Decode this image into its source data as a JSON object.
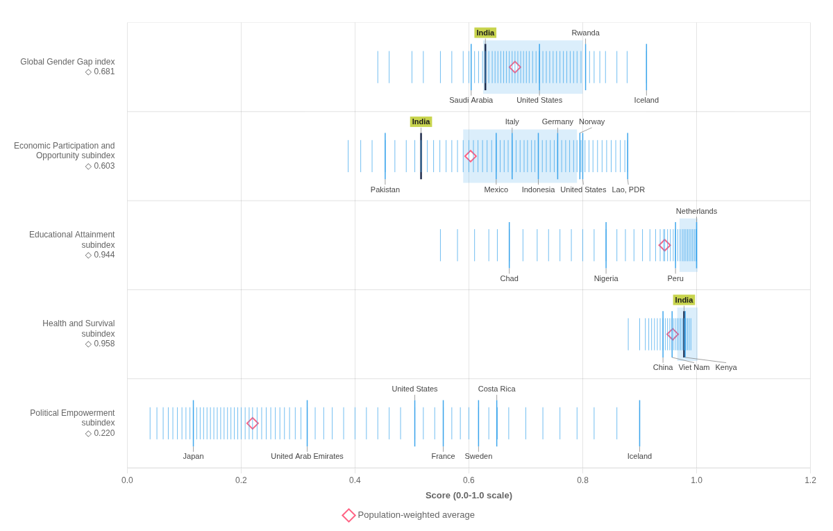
{
  "chart_data": {
    "type": "strip",
    "categories": [
      [
        "Global Gender Gap index"
      ],
      [
        "Economic Participation and",
        "Opportunity subindex"
      ],
      [
        "Educational Attainment",
        "subindex"
      ],
      [
        "Health and Survival",
        "subindex"
      ],
      [
        "Political Empowerment",
        "subindex"
      ]
    ],
    "xlabel": "Score (0.0-1.0 scale)",
    "xlim": [
      0,
      1.2
    ],
    "xticks": [
      {
        "value": 0,
        "label": "0.0"
      },
      0.2,
      0.4,
      0.6,
      0.8,
      {
        "value": 1,
        "label": "1.0"
      },
      1.2
    ],
    "grid": true,
    "legend": "bottom",
    "series": [
      {
        "name": "Population-weighted average",
        "marker": "diamond",
        "values": [
          0.681,
          0.603,
          0.944,
          0.958,
          0.22
        ],
        "value_labels": [
          "◇ 0.681",
          "◇ 0.603",
          "◇ 0.944",
          "◇ 0.958",
          "◇ 0.220"
        ]
      }
    ],
    "country_ticks": [
      [
        0.44,
        0.46,
        0.5,
        0.52,
        0.55,
        0.57,
        0.59,
        0.6,
        0.61,
        0.617,
        0.624,
        0.629,
        0.635,
        0.641,
        0.646,
        0.651,
        0.656,
        0.661,
        0.666,
        0.671,
        0.676,
        0.681,
        0.686,
        0.691,
        0.696,
        0.701,
        0.706,
        0.712,
        0.718,
        0.724,
        0.73,
        0.736,
        0.742,
        0.748,
        0.754,
        0.76,
        0.766,
        0.772,
        0.778,
        0.784,
        0.79,
        0.797,
        0.805,
        0.812,
        0.82,
        0.83,
        0.84,
        0.86,
        0.878,
        0.912
      ],
      [
        0.388,
        0.41,
        0.43,
        0.453,
        0.47,
        0.49,
        0.505,
        0.516,
        0.527,
        0.538,
        0.549,
        0.56,
        0.57,
        0.58,
        0.59,
        0.6,
        0.608,
        0.616,
        0.624,
        0.632,
        0.64,
        0.648,
        0.655,
        0.662,
        0.669,
        0.676,
        0.683,
        0.69,
        0.697,
        0.703,
        0.71,
        0.716,
        0.722,
        0.729,
        0.736,
        0.743,
        0.75,
        0.756,
        0.763,
        0.77,
        0.777,
        0.784,
        0.79,
        0.797,
        0.804,
        0.811,
        0.818,
        0.826,
        0.834,
        0.842,
        0.85,
        0.858,
        0.866,
        0.874,
        0.879
      ],
      [
        0.55,
        0.58,
        0.61,
        0.635,
        0.65,
        0.671,
        0.695,
        0.72,
        0.74,
        0.76,
        0.78,
        0.8,
        0.82,
        0.841,
        0.86,
        0.875,
        0.89,
        0.905,
        0.918,
        0.928,
        0.936,
        0.942,
        0.944,
        0.949,
        0.954,
        0.959,
        0.963,
        0.967,
        0.971,
        0.975,
        0.978,
        0.981,
        0.984,
        0.987,
        0.99,
        0.993,
        0.996,
        0.999,
        1.0
      ],
      [
        0.88,
        0.9,
        0.91,
        0.916,
        0.921,
        0.926,
        0.931,
        0.936,
        0.941,
        0.945,
        0.949,
        0.953,
        0.957,
        0.96,
        0.963,
        0.966,
        0.969,
        0.972,
        0.975,
        0.978,
        0.981,
        0.984,
        0.987,
        0.99
      ],
      [
        0.04,
        0.052,
        0.063,
        0.072,
        0.08,
        0.088,
        0.096,
        0.103,
        0.11,
        0.116,
        0.122,
        0.128,
        0.134,
        0.14,
        0.146,
        0.152,
        0.158,
        0.164,
        0.17,
        0.176,
        0.182,
        0.188,
        0.194,
        0.2,
        0.207,
        0.214,
        0.22,
        0.228,
        0.236,
        0.244,
        0.252,
        0.26,
        0.268,
        0.276,
        0.285,
        0.295,
        0.305,
        0.316,
        0.33,
        0.345,
        0.36,
        0.38,
        0.4,
        0.42,
        0.44,
        0.46,
        0.48,
        0.505,
        0.52,
        0.54,
        0.555,
        0.57,
        0.585,
        0.6,
        0.617,
        0.635,
        0.65,
        0.67,
        0.7,
        0.73,
        0.76,
        0.79,
        0.82,
        0.86,
        0.9
      ]
    ],
    "highlighted_ranges": [
      [
        0.625,
        0.8
      ],
      [
        0.59,
        0.79
      ],
      [
        0.97,
        1.002
      ],
      [
        0.966,
        1.002
      ],
      null
    ],
    "annotations": [
      [
        {
          "text": "India",
          "x": 0.629,
          "position": "above",
          "color": "#c8d44e"
        },
        {
          "text": "Rwanda",
          "x": 0.805,
          "position": "above"
        },
        {
          "text": "Saudi Arabia",
          "x": 0.604,
          "position": "below"
        },
        {
          "text": "United States",
          "x": 0.724,
          "position": "below"
        },
        {
          "text": "Iceland",
          "x": 0.912,
          "position": "below"
        }
      ],
      [
        {
          "text": "India",
          "x": 0.516,
          "position": "above",
          "color": "#c8d44e"
        },
        {
          "text": "Italy",
          "x": 0.676,
          "position": "above"
        },
        {
          "text": "Germany",
          "x": 0.756,
          "position": "above"
        },
        {
          "text": "Norway",
          "x": 0.795,
          "position": "above"
        },
        {
          "text": "Pakistan",
          "x": 0.453,
          "position": "below"
        },
        {
          "text": "Mexico",
          "x": 0.648,
          "position": "below"
        },
        {
          "text": "Indonesia",
          "x": 0.722,
          "position": "below"
        },
        {
          "text": "United States",
          "x": 0.8,
          "position": "below"
        },
        {
          "text": "Lao, PDR",
          "x": 0.879,
          "position": "below"
        }
      ],
      [
        {
          "text": "Netherlands",
          "x": 1.0,
          "position": "above"
        },
        {
          "text": "Chad",
          "x": 0.671,
          "position": "below"
        },
        {
          "text": "Nigeria",
          "x": 0.841,
          "position": "below"
        },
        {
          "text": "Peru",
          "x": 0.963,
          "position": "below"
        }
      ],
      [
        {
          "text": "India",
          "x": 0.978,
          "position": "above",
          "color": "#c8d44e"
        },
        {
          "text": "China",
          "x": 0.941,
          "position": "below"
        },
        {
          "text": "Viet Nam",
          "x": 0.957,
          "position": "below"
        },
        {
          "text": "Kenya",
          "x": 0.98,
          "position": "below"
        }
      ],
      [
        {
          "text": "United States",
          "x": 0.505,
          "position": "above"
        },
        {
          "text": "Costa Rica",
          "x": 0.649,
          "position": "above"
        },
        {
          "text": "Japan",
          "x": 0.116,
          "position": "below"
        },
        {
          "text": "United Arab Emirates",
          "x": 0.316,
          "position": "below"
        },
        {
          "text": "France",
          "x": 0.555,
          "position": "below"
        },
        {
          "text": "Sweden",
          "x": 0.617,
          "position": "below"
        },
        {
          "text": "Iceland",
          "x": 0.9,
          "position": "below"
        }
      ]
    ]
  }
}
